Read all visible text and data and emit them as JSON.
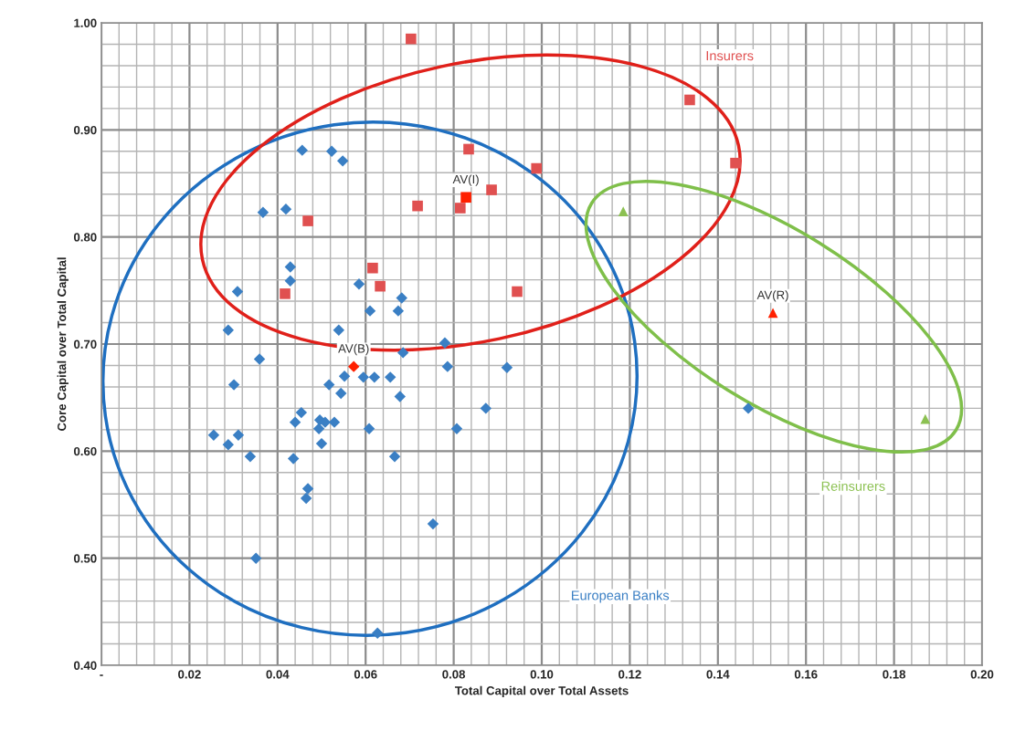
{
  "chart_data": {
    "type": "scatter",
    "xlabel": "Total Capital over Total Assets",
    "ylabel": "Core Capital over Total Capital",
    "xlim": [
      0,
      0.2
    ],
    "ylim": [
      0.4,
      1.0
    ],
    "xticks": [
      {
        "value": 0,
        "label": "-"
      },
      0.02,
      0.04,
      0.06,
      0.08,
      {
        "value": 0.1,
        "label": "0.10"
      },
      0.12,
      0.14,
      0.16,
      0.18,
      {
        "value": 0.2,
        "label": "0.20"
      }
    ],
    "yticks": [
      {
        "value": 0.4,
        "label": "0.40"
      },
      {
        "value": 0.5,
        "label": "0.50"
      },
      {
        "value": 0.6,
        "label": "0.60"
      },
      {
        "value": 0.7,
        "label": "0.70"
      },
      {
        "value": 0.8,
        "label": "0.80"
      },
      {
        "value": 0.9,
        "label": "0.90"
      },
      {
        "value": 1.0,
        "label": "1.00"
      }
    ],
    "grid": true,
    "series": [
      {
        "name": "European Banks",
        "color": "#3a7fc4",
        "marker": "diamond",
        "x": [
          0.0456,
          0.0523,
          0.0548,
          0.0367,
          0.0419,
          0.0429,
          0.0429,
          0.0309,
          0.0585,
          0.061,
          0.0674,
          0.0682,
          0.0288,
          0.0539,
          0.0359,
          0.0685,
          0.078,
          0.0786,
          0.0921,
          0.0301,
          0.0552,
          0.0595,
          0.062,
          0.0656,
          0.0517,
          0.0544,
          0.0678,
          0.0454,
          0.044,
          0.0496,
          0.0508,
          0.0529,
          0.0494,
          0.0608,
          0.0807,
          0.0255,
          0.0311,
          0.0288,
          0.05,
          0.0338,
          0.0436,
          0.0666,
          0.0873,
          0.0469,
          0.0465,
          0.0753,
          0.0351,
          0.0627,
          0.1469
        ],
        "values": [
          0.881,
          0.88,
          0.871,
          0.823,
          0.826,
          0.772,
          0.759,
          0.749,
          0.756,
          0.731,
          0.731,
          0.743,
          0.713,
          0.713,
          0.686,
          0.692,
          0.701,
          0.679,
          0.678,
          0.662,
          0.67,
          0.669,
          0.669,
          0.669,
          0.662,
          0.654,
          0.651,
          0.636,
          0.627,
          0.629,
          0.627,
          0.627,
          0.621,
          0.621,
          0.621,
          0.615,
          0.615,
          0.606,
          0.607,
          0.595,
          0.593,
          0.595,
          0.64,
          0.565,
          0.556,
          0.532,
          0.5,
          0.43,
          0.64
        ]
      },
      {
        "name": "Insurers",
        "color": "#e05050",
        "marker": "square",
        "x": [
          0.0703,
          0.0834,
          0.0988,
          0.1336,
          0.144,
          0.0886,
          0.0815,
          0.0718,
          0.0469,
          0.0616,
          0.0633,
          0.0417,
          0.0944
        ],
        "values": [
          0.985,
          0.882,
          0.864,
          0.928,
          0.869,
          0.844,
          0.827,
          0.829,
          0.815,
          0.771,
          0.754,
          0.747,
          0.749
        ]
      },
      {
        "name": "Reinsurers",
        "color": "#8cc152",
        "marker": "triangle",
        "x": [
          0.1185,
          0.1871
        ],
        "values": [
          0.824,
          0.63
        ]
      },
      {
        "name": "AV(B)",
        "color": "#ff2000",
        "marker": "diamond",
        "x": [
          0.0573
        ],
        "values": [
          0.679
        ]
      },
      {
        "name": "AV(I)",
        "color": "#ff2000",
        "marker": "square",
        "x": [
          0.0828
        ],
        "values": [
          0.837
        ]
      },
      {
        "name": "AV(R)",
        "color": "#ff2000",
        "marker": "triangle",
        "x": [
          0.1525
        ],
        "values": [
          0.729
        ]
      }
    ]
  }
}
